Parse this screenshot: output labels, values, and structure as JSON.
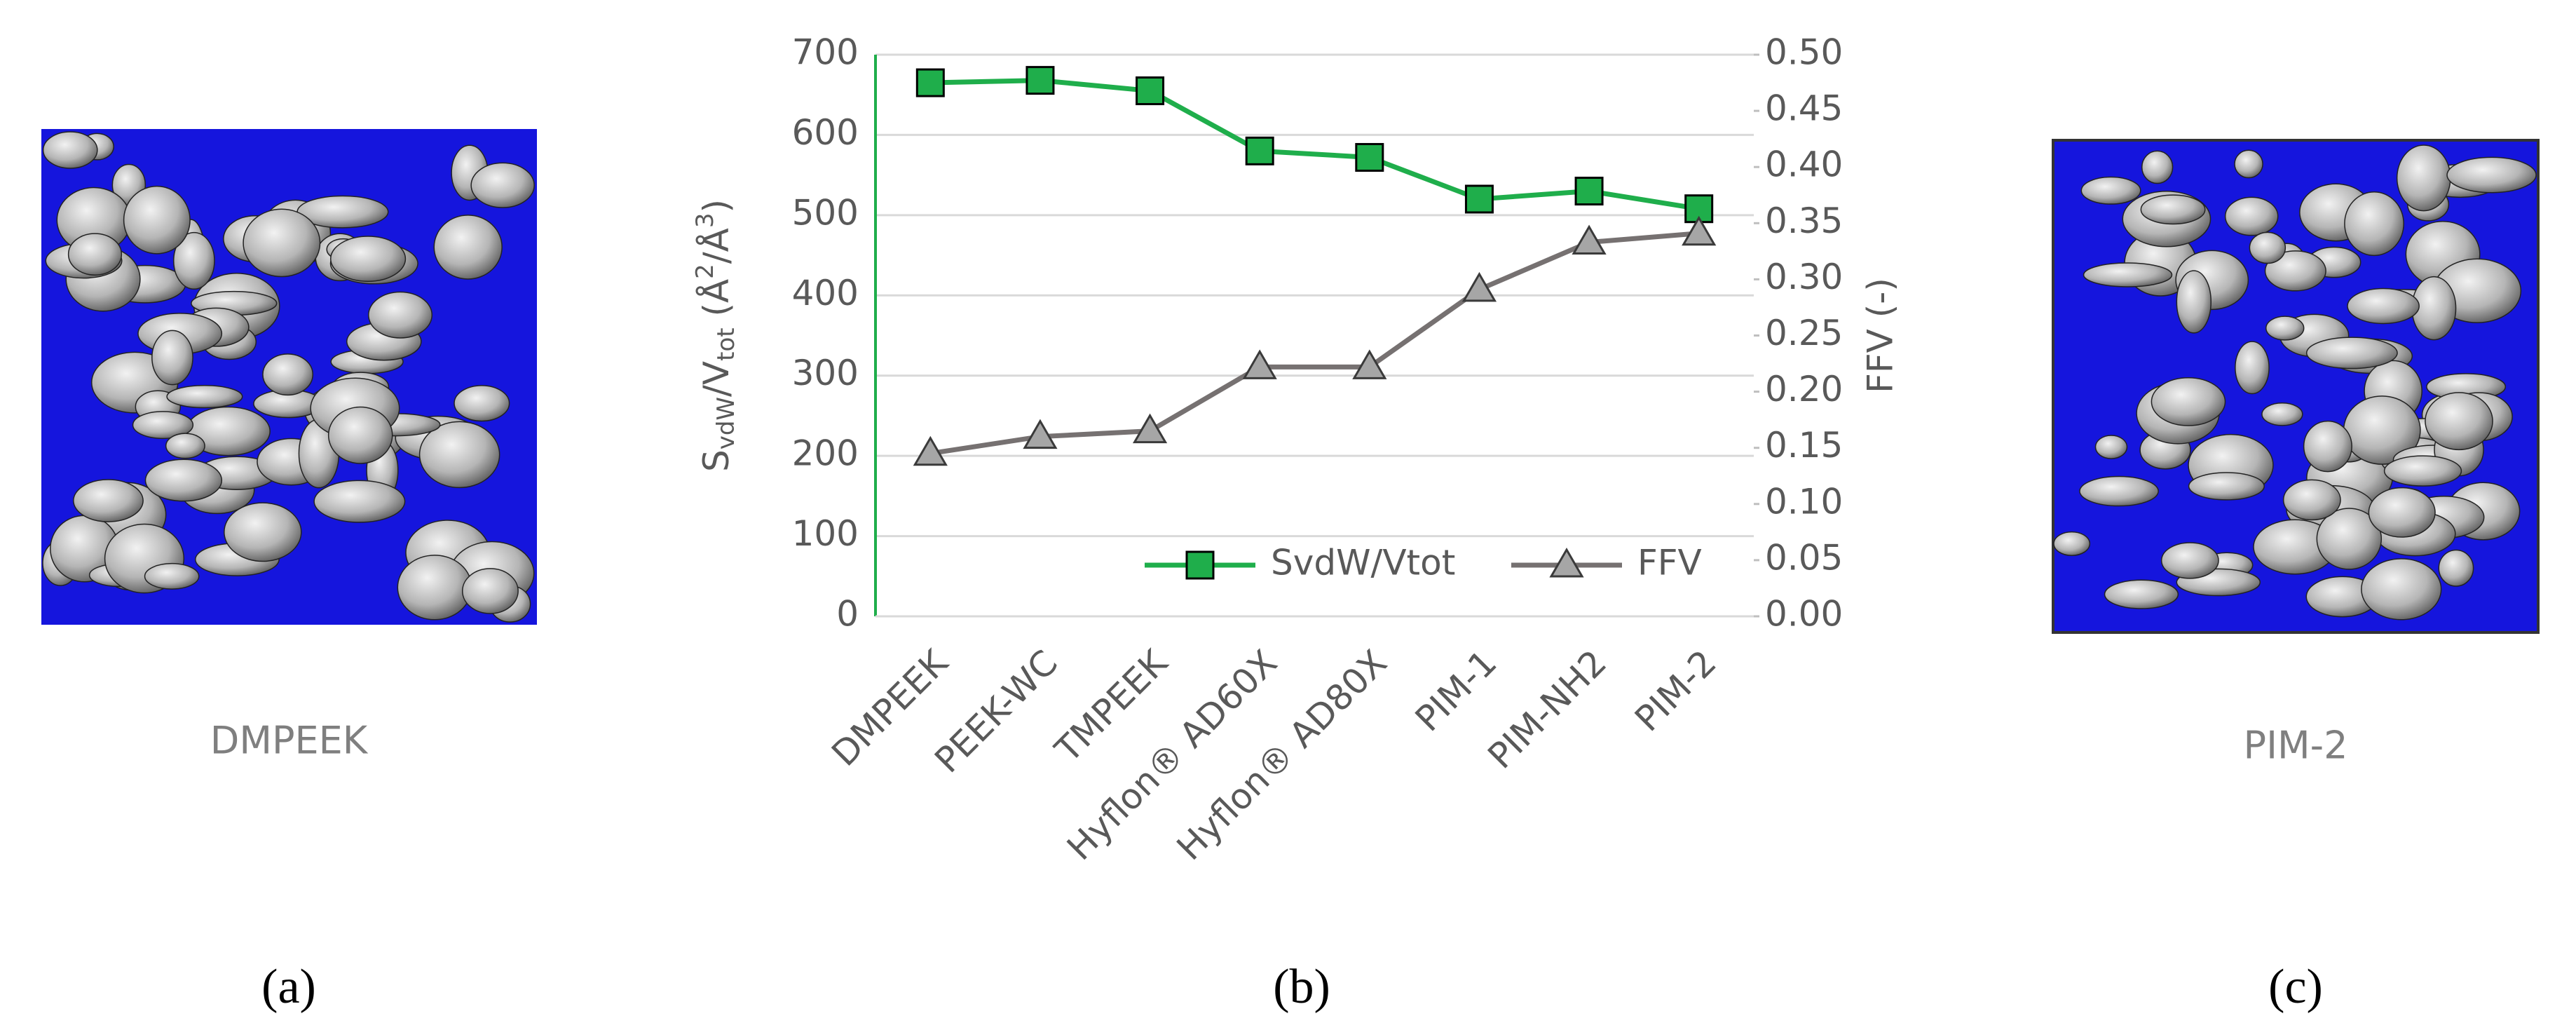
{
  "panels": {
    "a": "(a)",
    "b": "(b)",
    "c": "(c)"
  },
  "images": {
    "left_caption": "DMPEEK",
    "right_caption": "PIM-2"
  },
  "chart_data": {
    "type": "line",
    "y_label": [
      "S",
      "vdW",
      "/V",
      "tot",
      " (Å",
      "2",
      "/Å",
      "3",
      ")"
    ],
    "y2_label": "FFV (-)",
    "categories": [
      "DMPEEK",
      "PEEK-WC",
      "TMPEEK",
      "Hyflon® AD60X",
      "Hyflon® AD80X",
      "PIM-1",
      "PIM-NH2",
      "PIM-2"
    ],
    "series": [
      {
        "name": "SvdW/Vtot",
        "color": "#1fae4b",
        "marker": "square",
        "values": [
          665,
          668,
          655,
          580,
          572,
          520,
          530,
          508
        ]
      },
      {
        "name": "FFV",
        "color": "#767171",
        "marker": "triangle",
        "axis": "y2",
        "values": [
          0.145,
          0.16,
          0.165,
          0.222,
          0.222,
          0.291,
          0.333,
          0.341
        ]
      }
    ],
    "ylim": [
      0,
      700
    ],
    "yticks": [
      0,
      100,
      200,
      300,
      400,
      500,
      600,
      700
    ],
    "y2lim": [
      0,
      0.5
    ],
    "y2ticks": [
      {
        "value": 0,
        "label": "0.00"
      },
      0.05,
      {
        "value": 0.1,
        "label": "0.10"
      },
      0.15,
      {
        "value": 0.2,
        "label": "0.20"
      },
      0.25,
      {
        "value": 0.3,
        "label": "0.30"
      },
      0.35,
      {
        "value": 0.4,
        "label": "0.40"
      },
      0.45,
      {
        "value": 0.5,
        "label": "0.50"
      }
    ],
    "grid": true,
    "legend": "bottom-right"
  }
}
